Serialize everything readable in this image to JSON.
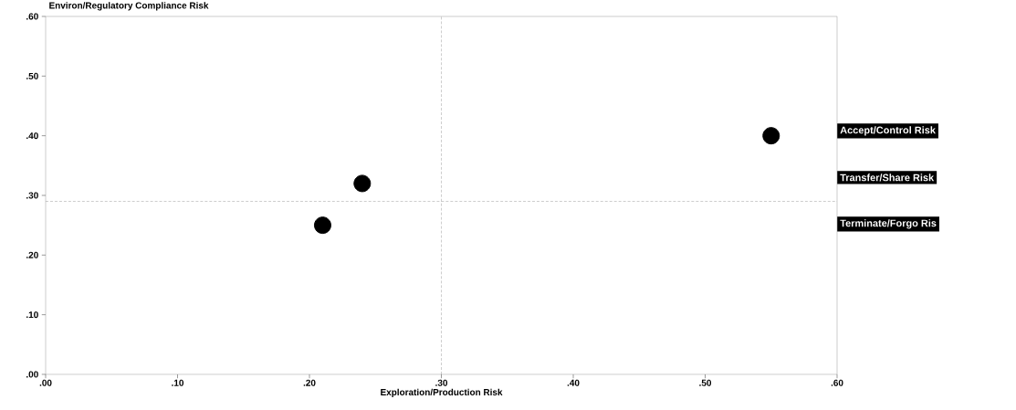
{
  "chart_data": {
    "type": "scatter",
    "xlabel": "Exploration/Production Risk",
    "ylabel": "Environ/Regulatory Compliance Risk",
    "x": [
      0.21,
      0.24,
      0.55
    ],
    "values": [
      0.25,
      0.32,
      0.4
    ],
    "color": "#000000",
    "marker": "circle",
    "xlim": [
      0,
      0.6
    ],
    "ylim": [
      0,
      0.6
    ],
    "xticks": [
      {
        "value": 0,
        "label": ".00"
      },
      {
        "value": 0.1,
        "label": ".10"
      },
      {
        "value": 0.2,
        "label": ".20"
      },
      {
        "value": 0.3,
        "label": ".30"
      },
      {
        "value": 0.4,
        "label": ".40"
      },
      {
        "value": 0.5,
        "label": ".50"
      },
      {
        "value": 0.6,
        "label": ".60"
      }
    ],
    "yticks": [
      {
        "value": 0,
        "label": ".00"
      },
      {
        "value": 0.1,
        "label": ".10"
      },
      {
        "value": 0.2,
        "label": ".20"
      },
      {
        "value": 0.3,
        "label": ".30"
      },
      {
        "value": 0.4,
        "label": ".40"
      },
      {
        "value": 0.5,
        "label": ".50"
      },
      {
        "value": 0.6,
        "label": ".60"
      }
    ],
    "ref_lines": [
      {
        "axis": "x",
        "value": 0.3,
        "line_style": "dashed",
        "color": "#808080"
      },
      {
        "axis": "y",
        "value": 0.29,
        "line_style": "dashed",
        "color": "#808080"
      }
    ],
    "annotations": [
      "Accept/Control Risk",
      "Transfer/Share Risk",
      "Terminate/Forgo Ris"
    ],
    "grid": false
  }
}
